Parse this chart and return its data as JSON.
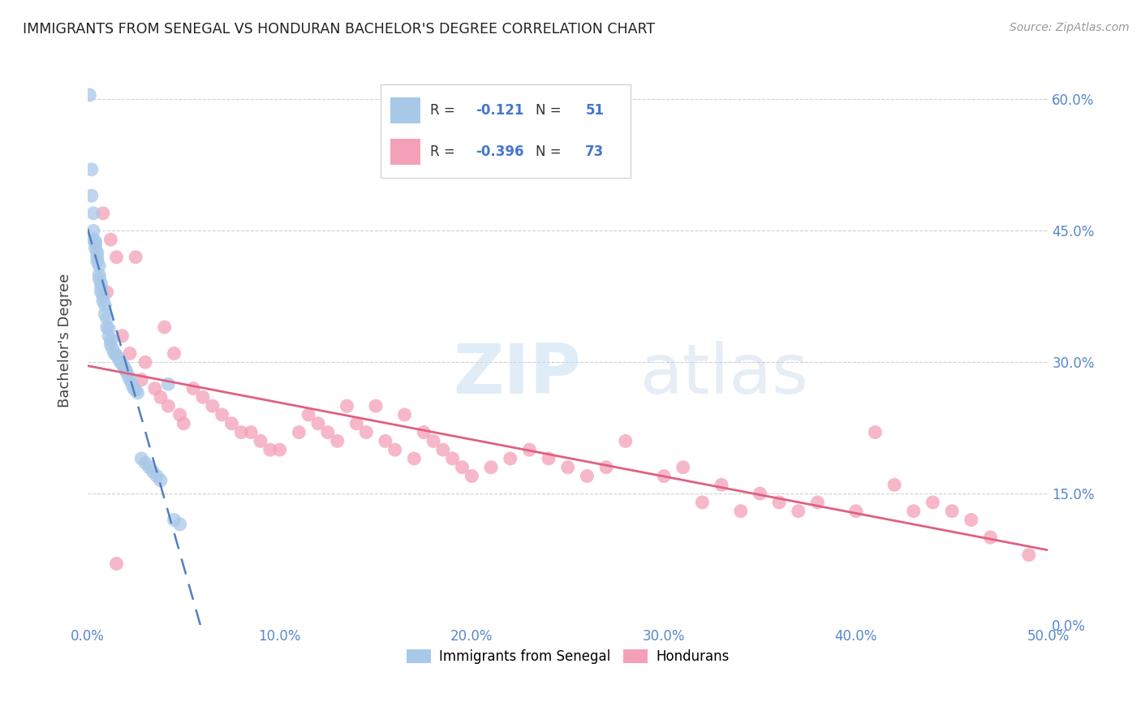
{
  "title": "IMMIGRANTS FROM SENEGAL VS HONDURAN BACHELOR'S DEGREE CORRELATION CHART",
  "source": "Source: ZipAtlas.com",
  "ylabel": "Bachelor's Degree",
  "xlim": [
    0.0,
    0.5
  ],
  "ylim": [
    0.0,
    0.65
  ],
  "xticks": [
    0.0,
    0.1,
    0.2,
    0.3,
    0.4,
    0.5
  ],
  "xticklabels": [
    "0.0%",
    "10.0%",
    "20.0%",
    "30.0%",
    "40.0%",
    "50.0%"
  ],
  "yticks": [
    0.0,
    0.15,
    0.3,
    0.45,
    0.6
  ],
  "right_yticklabels": [
    "0.0%",
    "15.0%",
    "30.0%",
    "45.0%",
    "60.0%"
  ],
  "senegal_color": "#a8c8e8",
  "honduran_color": "#f4a0b8",
  "trend_blue": "#5080c0",
  "trend_pink": "#e06080",
  "senegal_R": -0.121,
  "senegal_N": 51,
  "honduran_R": -0.396,
  "honduran_N": 73,
  "senegal_x": [
    0.001,
    0.002,
    0.002,
    0.003,
    0.003,
    0.003,
    0.004,
    0.004,
    0.004,
    0.005,
    0.005,
    0.005,
    0.006,
    0.006,
    0.006,
    0.007,
    0.007,
    0.007,
    0.008,
    0.008,
    0.009,
    0.009,
    0.01,
    0.01,
    0.011,
    0.011,
    0.012,
    0.012,
    0.013,
    0.014,
    0.015,
    0.016,
    0.017,
    0.018,
    0.019,
    0.02,
    0.021,
    0.022,
    0.023,
    0.024,
    0.025,
    0.026,
    0.028,
    0.03,
    0.032,
    0.034,
    0.036,
    0.038,
    0.042,
    0.045,
    0.048
  ],
  "senegal_y": [
    0.605,
    0.52,
    0.49,
    0.47,
    0.45,
    0.44,
    0.438,
    0.435,
    0.43,
    0.425,
    0.42,
    0.415,
    0.41,
    0.4,
    0.395,
    0.39,
    0.385,
    0.38,
    0.375,
    0.37,
    0.365,
    0.355,
    0.35,
    0.34,
    0.338,
    0.33,
    0.325,
    0.32,
    0.315,
    0.31,
    0.308,
    0.305,
    0.3,
    0.298,
    0.295,
    0.29,
    0.285,
    0.28,
    0.275,
    0.27,
    0.268,
    0.265,
    0.19,
    0.185,
    0.18,
    0.175,
    0.17,
    0.165,
    0.275,
    0.12,
    0.115
  ],
  "honduran_x": [
    0.008,
    0.01,
    0.012,
    0.015,
    0.018,
    0.02,
    0.022,
    0.025,
    0.028,
    0.03,
    0.035,
    0.038,
    0.04,
    0.042,
    0.045,
    0.048,
    0.05,
    0.055,
    0.06,
    0.065,
    0.07,
    0.075,
    0.08,
    0.085,
    0.09,
    0.095,
    0.1,
    0.11,
    0.115,
    0.12,
    0.125,
    0.13,
    0.135,
    0.14,
    0.145,
    0.15,
    0.155,
    0.16,
    0.165,
    0.17,
    0.175,
    0.18,
    0.185,
    0.19,
    0.195,
    0.2,
    0.21,
    0.22,
    0.23,
    0.24,
    0.25,
    0.26,
    0.27,
    0.28,
    0.3,
    0.31,
    0.32,
    0.33,
    0.34,
    0.35,
    0.36,
    0.37,
    0.38,
    0.4,
    0.41,
    0.42,
    0.43,
    0.44,
    0.45,
    0.46,
    0.47,
    0.49,
    0.015
  ],
  "honduran_y": [
    0.47,
    0.38,
    0.44,
    0.42,
    0.33,
    0.29,
    0.31,
    0.42,
    0.28,
    0.3,
    0.27,
    0.26,
    0.34,
    0.25,
    0.31,
    0.24,
    0.23,
    0.27,
    0.26,
    0.25,
    0.24,
    0.23,
    0.22,
    0.22,
    0.21,
    0.2,
    0.2,
    0.22,
    0.24,
    0.23,
    0.22,
    0.21,
    0.25,
    0.23,
    0.22,
    0.25,
    0.21,
    0.2,
    0.24,
    0.19,
    0.22,
    0.21,
    0.2,
    0.19,
    0.18,
    0.17,
    0.18,
    0.19,
    0.2,
    0.19,
    0.18,
    0.17,
    0.18,
    0.21,
    0.17,
    0.18,
    0.14,
    0.16,
    0.13,
    0.15,
    0.14,
    0.13,
    0.14,
    0.13,
    0.22,
    0.16,
    0.13,
    0.14,
    0.13,
    0.12,
    0.1,
    0.08,
    0.07
  ]
}
